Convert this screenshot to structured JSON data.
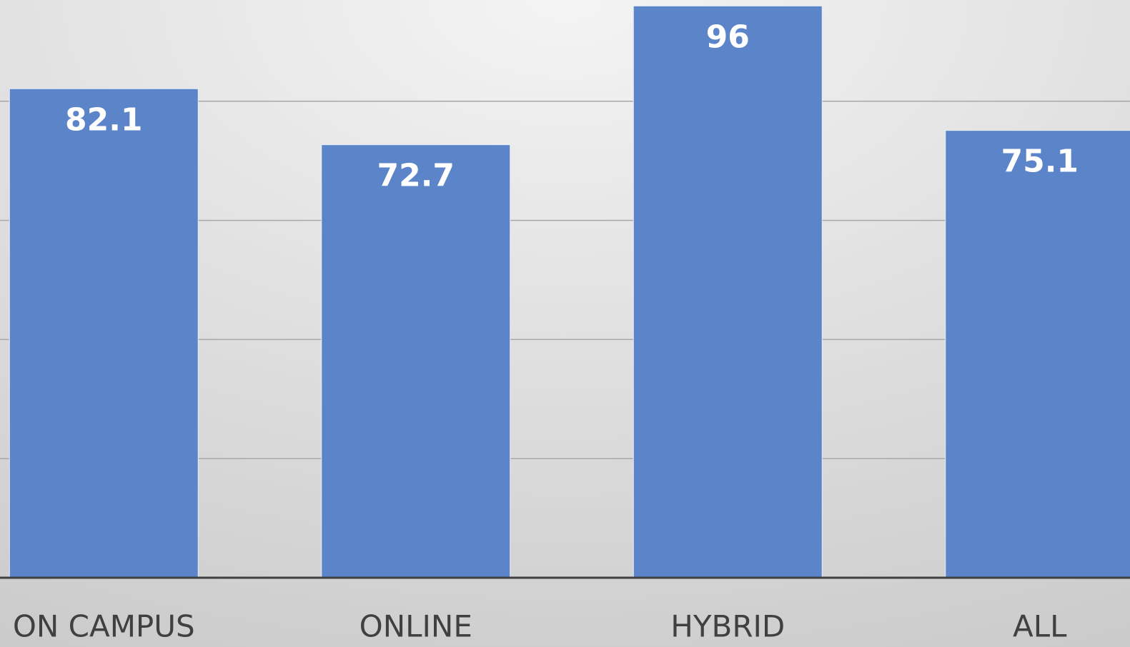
{
  "chart_data": {
    "type": "bar",
    "categories": [
      "ON CAMPUS",
      "ONLINE",
      "HYBRID",
      "ALL"
    ],
    "values": [
      82.1,
      72.7,
      96,
      75.1
    ],
    "color": "#5b84c9",
    "ylim": [
      0,
      97
    ],
    "yticks": [
      0,
      20,
      40,
      60,
      80
    ],
    "grid": true,
    "data_labels": true
  }
}
